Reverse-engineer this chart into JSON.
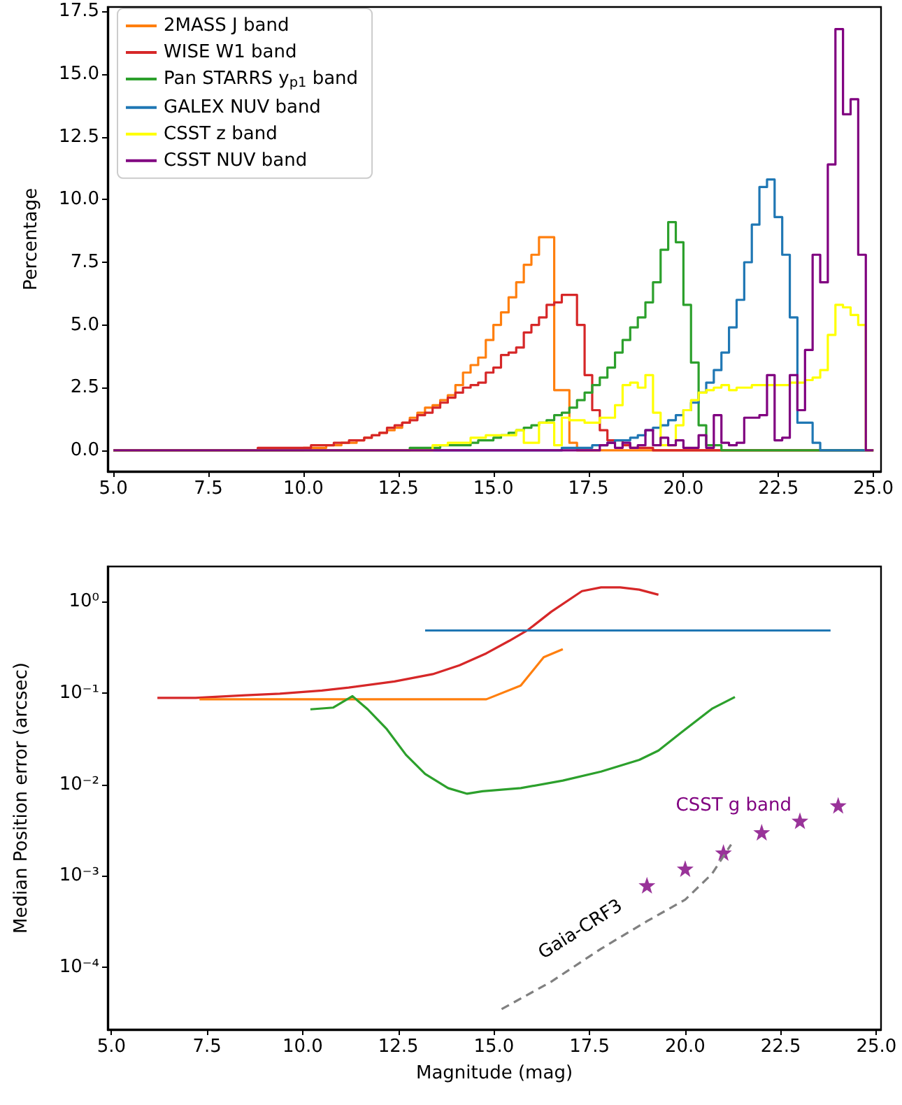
{
  "chart_data": [
    {
      "type": "step",
      "ylabel": "Percentage",
      "xlim": [
        4.85,
        25.2
      ],
      "ylim": [
        -0.84,
        17.68
      ],
      "xticks": [
        {
          "value": 5,
          "label": "5.0"
        },
        {
          "value": 7.5,
          "label": "7.5"
        },
        {
          "value": 10,
          "label": "10.0"
        },
        {
          "value": 12.5,
          "label": "12.5"
        },
        {
          "value": 15,
          "label": "15.0"
        },
        {
          "value": 17.5,
          "label": "17.5"
        },
        {
          "value": 20,
          "label": "20.0"
        },
        {
          "value": 22.5,
          "label": "22.5"
        },
        {
          "value": 25,
          "label": "25.0"
        }
      ],
      "yticks": [
        {
          "value": 0,
          "label": "0.0"
        },
        {
          "value": 2.5,
          "label": "2.5"
        },
        {
          "value": 5,
          "label": "5.0"
        },
        {
          "value": 7.5,
          "label": "7.5"
        },
        {
          "value": 10,
          "label": "10.0"
        },
        {
          "value": 12.5,
          "label": "12.5"
        },
        {
          "value": 15,
          "label": "15.0"
        },
        {
          "value": 17.5,
          "label": "17.5"
        }
      ],
      "grid": false,
      "legend": "top left",
      "marker": "none",
      "series": [
        {
          "name": "2MASS J band",
          "color": "#ff7f0e",
          "x": [
            5.0,
            10.0,
            10.2,
            10.4,
            10.6,
            10.8,
            11.0,
            11.2,
            11.4,
            11.6,
            11.8,
            12.0,
            12.2,
            12.4,
            12.6,
            12.8,
            13.0,
            13.2,
            13.4,
            13.6,
            13.8,
            14.0,
            14.2,
            14.4,
            14.6,
            14.8,
            15.0,
            15.2,
            15.4,
            15.6,
            15.8,
            16.0,
            16.2,
            16.4,
            16.6,
            16.8,
            17.0,
            17.2,
            25.0
          ],
          "values": [
            0,
            0.1,
            0.1,
            0.1,
            0.2,
            0.2,
            0.3,
            0.3,
            0.4,
            0.5,
            0.6,
            0.7,
            0.8,
            0.9,
            1.1,
            1.3,
            1.5,
            1.7,
            1.8,
            2.0,
            2.2,
            2.6,
            3.1,
            3.4,
            3.7,
            4.4,
            5.0,
            5.5,
            6.1,
            6.7,
            7.4,
            7.8,
            8.5,
            8.5,
            2.4,
            2.4,
            0.3,
            0,
            0
          ]
        },
        {
          "name": "WISE W1 band",
          "color": "#d62728",
          "x": [
            5.0,
            8.8,
            9.0,
            9.2,
            9.4,
            9.6,
            9.8,
            10.0,
            10.2,
            10.4,
            10.6,
            10.8,
            11.0,
            11.2,
            11.4,
            11.6,
            11.8,
            12.0,
            12.2,
            12.4,
            12.6,
            12.8,
            13.0,
            13.2,
            13.4,
            13.6,
            13.8,
            14.0,
            14.2,
            14.4,
            14.6,
            14.8,
            15.0,
            15.2,
            15.4,
            15.6,
            15.8,
            16.0,
            16.2,
            16.4,
            16.6,
            16.8,
            17.0,
            17.2,
            17.4,
            17.6,
            17.8,
            18.0,
            18.2,
            18.4,
            18.6,
            18.8,
            19.0,
            19.2,
            25.0
          ],
          "values": [
            0,
            0.1,
            0.1,
            0.1,
            0.1,
            0.1,
            0.1,
            0.1,
            0.2,
            0.2,
            0.2,
            0.3,
            0.3,
            0.4,
            0.4,
            0.5,
            0.6,
            0.7,
            0.9,
            1.0,
            1.1,
            1.2,
            1.4,
            1.5,
            1.7,
            1.9,
            2.1,
            2.3,
            2.5,
            2.6,
            2.7,
            3.1,
            3.3,
            3.8,
            3.9,
            4.1,
            4.7,
            5.0,
            5.3,
            5.8,
            5.9,
            6.2,
            6.2,
            5.0,
            3.0,
            1.6,
            0.8,
            0.4,
            0.4,
            0.2,
            0.1,
            0.1,
            0.1,
            0,
            0
          ]
        },
        {
          "name": "Pan STARRS y$_{p1}$ band",
          "color": "#2ca02c",
          "x": [
            5.0,
            12.8,
            13.0,
            13.2,
            13.4,
            13.6,
            13.8,
            14.0,
            14.2,
            14.4,
            14.6,
            14.8,
            15.0,
            15.2,
            15.4,
            15.6,
            15.8,
            16.0,
            16.2,
            16.4,
            16.6,
            16.8,
            17.0,
            17.2,
            17.4,
            17.6,
            17.8,
            18.0,
            18.2,
            18.4,
            18.6,
            18.8,
            19.0,
            19.2,
            19.4,
            19.6,
            19.8,
            20.0,
            20.2,
            20.4,
            20.6,
            20.8,
            21.0,
            25.0
          ],
          "values": [
            0,
            0.1,
            0.1,
            0.1,
            0.1,
            0.2,
            0.2,
            0.2,
            0.2,
            0.3,
            0.4,
            0.4,
            0.5,
            0.6,
            0.7,
            0.8,
            0.9,
            1.0,
            1.1,
            1.2,
            1.4,
            1.5,
            1.7,
            2.0,
            2.3,
            2.6,
            2.9,
            3.3,
            3.9,
            4.4,
            4.9,
            5.3,
            5.9,
            6.7,
            8.0,
            9.1,
            8.3,
            5.8,
            3.5,
            1.0,
            0.2,
            0.2,
            0,
            0
          ]
        },
        {
          "name": "GALEX NUV band",
          "color": "#1f77b4",
          "x": [
            5.0,
            16.8,
            17.0,
            17.2,
            17.4,
            17.6,
            17.8,
            18.0,
            18.2,
            18.4,
            18.6,
            18.8,
            19.0,
            19.2,
            19.4,
            19.6,
            19.8,
            20.0,
            20.2,
            20.4,
            20.6,
            20.8,
            21.0,
            21.2,
            21.4,
            21.6,
            21.8,
            22.0,
            22.2,
            22.4,
            22.6,
            22.8,
            23.0,
            23.2,
            23.4,
            23.6,
            25.0
          ],
          "values": [
            0,
            0.1,
            0.1,
            0.1,
            0.1,
            0.2,
            0.2,
            0.3,
            0.4,
            0.4,
            0.5,
            0.6,
            0.8,
            0.9,
            1.0,
            1.2,
            1.4,
            1.6,
            1.9,
            2.3,
            2.7,
            3.2,
            3.9,
            4.9,
            6.0,
            7.5,
            9.0,
            10.5,
            10.8,
            9.3,
            7.8,
            5.3,
            1.1,
            1.1,
            0.3,
            0,
            0
          ]
        },
        {
          "name": "CSST z band",
          "color": "#ffff00",
          "x": [
            5.0,
            13.4,
            13.6,
            13.8,
            14.0,
            14.2,
            14.4,
            14.6,
            14.8,
            15.0,
            15.2,
            15.4,
            15.6,
            15.8,
            16.0,
            16.2,
            16.4,
            16.6,
            16.8,
            17.0,
            17.2,
            17.4,
            17.6,
            17.8,
            18.0,
            18.2,
            18.4,
            18.6,
            18.8,
            19.0,
            19.2,
            19.4,
            19.6,
            19.8,
            20.0,
            20.2,
            20.4,
            20.6,
            20.8,
            21.0,
            21.2,
            21.4,
            21.6,
            21.8,
            22.0,
            22.2,
            22.4,
            22.6,
            22.8,
            23.0,
            23.2,
            23.4,
            23.6,
            23.8,
            24.0,
            24.2,
            24.4,
            24.6,
            24.8,
            25.0
          ],
          "values": [
            0,
            0.2,
            0.2,
            0.3,
            0.3,
            0.3,
            0.5,
            0.5,
            0.6,
            0.6,
            0.6,
            0.6,
            0.8,
            0.3,
            0.3,
            1.1,
            1.1,
            0.2,
            1.3,
            1.2,
            1.2,
            1.1,
            1.1,
            1.3,
            1.3,
            1.8,
            2.6,
            2.7,
            2.5,
            3.0,
            1.5,
            0.2,
            0.2,
            1.0,
            1.6,
            2.0,
            2.3,
            2.4,
            2.5,
            2.6,
            2.4,
            2.5,
            2.5,
            2.6,
            2.6,
            2.6,
            2.6,
            2.6,
            2.7,
            2.7,
            2.8,
            2.9,
            3.2,
            4.6,
            5.8,
            5.7,
            5.4,
            5.0,
            0,
            0
          ]
        },
        {
          "name": "CSST NUV band",
          "color": "#800080",
          "x": [
            5.0,
            17.8,
            18.0,
            18.2,
            18.4,
            18.6,
            18.8,
            19.0,
            19.2,
            19.4,
            19.6,
            19.8,
            20.0,
            20.2,
            20.4,
            20.6,
            20.8,
            21.0,
            21.2,
            21.4,
            21.6,
            21.8,
            22.0,
            22.2,
            22.4,
            22.6,
            22.8,
            23.0,
            23.2,
            23.4,
            23.6,
            23.8,
            24.0,
            24.2,
            24.4,
            24.6,
            24.8,
            25.0
          ],
          "values": [
            0,
            0.2,
            0.3,
            0.1,
            0.3,
            0.1,
            0.2,
            0.8,
            0.2,
            0.5,
            0.2,
            0.4,
            0.1,
            0.1,
            0.6,
            0.1,
            1.4,
            0.3,
            0.2,
            0.3,
            1.3,
            1.3,
            1.4,
            3.0,
            0.4,
            0.5,
            3.0,
            1.6,
            4.0,
            7.8,
            6.7,
            11.4,
            16.8,
            13.4,
            14.0,
            7.8,
            0,
            0
          ]
        }
      ]
    },
    {
      "type": "line",
      "xlabel": "Magnitude (mag)",
      "ylabel": "Median Position error (arcsec)",
      "log": "y",
      "xlim": [
        4.9,
        25.12
      ],
      "ylim": [
        2.1e-05,
        2.4
      ],
      "xticks": [
        {
          "value": 5,
          "label": "5.0"
        },
        {
          "value": 7.5,
          "label": "7.5"
        },
        {
          "value": 10,
          "label": "10.0"
        },
        {
          "value": 12.5,
          "label": "12.5"
        },
        {
          "value": 15,
          "label": "15.0"
        },
        {
          "value": 17.5,
          "label": "17.5"
        },
        {
          "value": 20,
          "label": "20.0"
        },
        {
          "value": 22.5,
          "label": "22.5"
        },
        {
          "value": 25,
          "label": "25.0"
        }
      ],
      "yticks": [
        {
          "value": 0.0001,
          "label": "10⁻⁴"
        },
        {
          "value": 0.001,
          "label": "10⁻³"
        },
        {
          "value": 0.01,
          "label": "10⁻²"
        },
        {
          "value": 0.1,
          "label": "10⁻¹"
        },
        {
          "value": 1,
          "label": "10⁰"
        }
      ],
      "grid": false,
      "legend": false,
      "marker": "none",
      "series": [
        {
          "color": "#d62728",
          "x": [
            6.2,
            7.2,
            8.5,
            9.4,
            10.5,
            11.2,
            12.4,
            13.4,
            14.1,
            14.8,
            15.4,
            15.9,
            16.5,
            17.3,
            17.8,
            18.3,
            18.8,
            19.3
          ],
          "values": [
            0.088,
            0.088,
            0.094,
            0.098,
            0.106,
            0.114,
            0.133,
            0.16,
            0.2,
            0.27,
            0.37,
            0.49,
            0.77,
            1.29,
            1.42,
            1.42,
            1.34,
            1.18
          ]
        },
        {
          "color": "#1f77b4",
          "x": [
            13.2,
            23.8
          ],
          "values": [
            0.48,
            0.48
          ]
        },
        {
          "color": "#ff7f0e",
          "x": [
            7.3,
            14.8,
            15.7,
            16.3,
            16.8
          ],
          "values": [
            0.085,
            0.085,
            0.12,
            0.245,
            0.3
          ]
        },
        {
          "color": "#2ca02c",
          "x": [
            10.2,
            10.8,
            11.3,
            11.7,
            12.2,
            12.7,
            13.2,
            13.8,
            14.3,
            14.7,
            15.7,
            16.8,
            17.8,
            18.8,
            19.3,
            19.9,
            20.7,
            21.3
          ],
          "values": [
            0.066,
            0.069,
            0.092,
            0.066,
            0.04,
            0.021,
            0.013,
            0.0091,
            0.0079,
            0.0084,
            0.0091,
            0.011,
            0.0138,
            0.0185,
            0.0234,
            0.037,
            0.067,
            0.09
          ]
        },
        {
          "name": "Gaia-CRF3",
          "color": "#808080",
          "line_style": "dashed",
          "x": [
            15.2,
            16.5,
            17.8,
            19.0,
            20.0,
            20.7,
            21.2
          ],
          "values": [
            3.5e-05,
            7e-05,
            0.00016,
            0.00032,
            0.00055,
            0.00105,
            0.0022
          ]
        },
        {
          "name": "CSST g band",
          "type": "scatter",
          "marker": "star",
          "color": "#800080",
          "x": [
            19,
            20,
            21,
            22,
            23,
            24
          ],
          "values": [
            0.00079,
            0.0012,
            0.0018,
            0.003,
            0.004,
            0.0059
          ]
        }
      ]
    }
  ]
}
